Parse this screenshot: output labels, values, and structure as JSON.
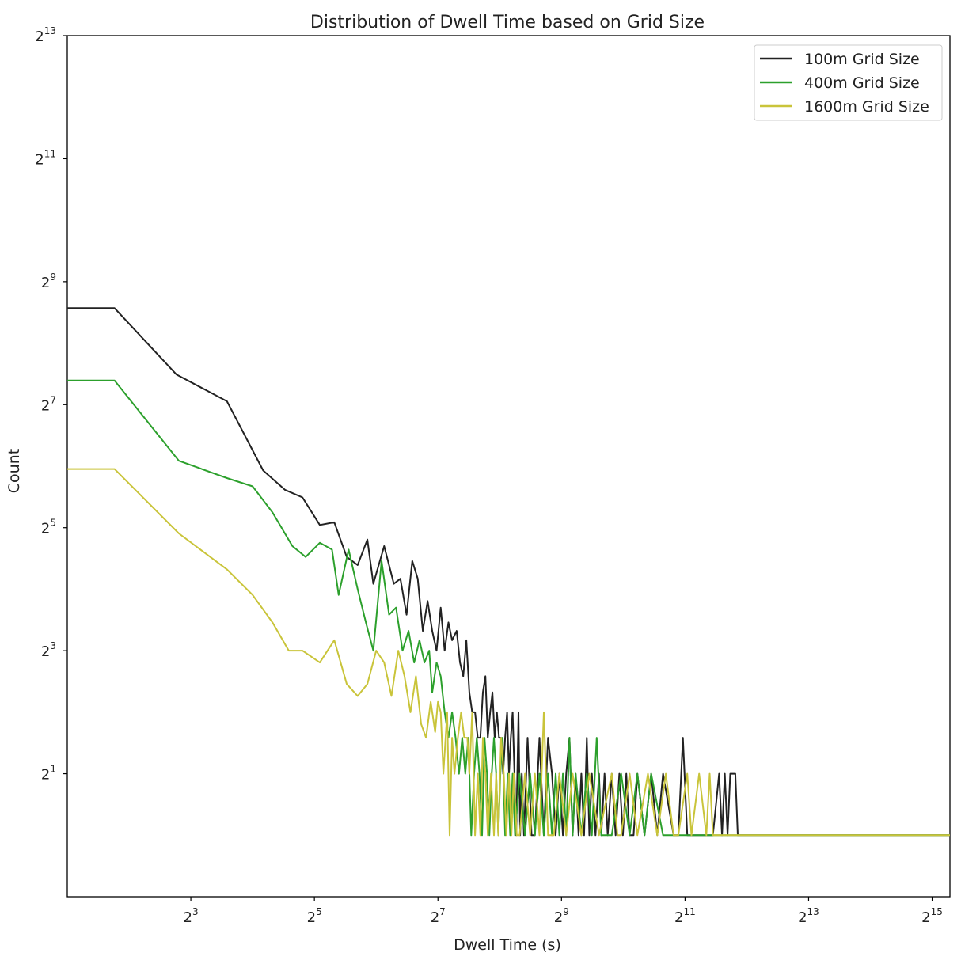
{
  "chart_data": {
    "type": "line",
    "title": "Distribution of Dwell Time based on Grid Size",
    "xlabel": "Dwell Time (s)",
    "ylabel": "Count",
    "x_scale": "log2",
    "y_scale": "log2",
    "xlim": [
      2,
      40000
    ],
    "ylim": [
      0.5,
      8192
    ],
    "x_ticks": [
      {
        "base": "2",
        "exp": "3",
        "value": 8
      },
      {
        "base": "2",
        "exp": "5",
        "value": 32
      },
      {
        "base": "2",
        "exp": "7",
        "value": 128
      },
      {
        "base": "2",
        "exp": "9",
        "value": 512
      },
      {
        "base": "2",
        "exp": "11",
        "value": 2048
      },
      {
        "base": "2",
        "exp": "13",
        "value": 8192
      },
      {
        "base": "2",
        "exp": "15",
        "value": 32768
      }
    ],
    "y_ticks": [
      {
        "base": "2",
        "exp": "1",
        "value": 2
      },
      {
        "base": "2",
        "exp": "3",
        "value": 8
      },
      {
        "base": "2",
        "exp": "5",
        "value": 32
      },
      {
        "base": "2",
        "exp": "7",
        "value": 128
      },
      {
        "base": "2",
        "exp": "9",
        "value": 512
      },
      {
        "base": "2",
        "exp": "11",
        "value": 2048
      },
      {
        "base": "2",
        "exp": "13",
        "value": 8192
      }
    ],
    "grid": false,
    "legend_position": "top-right",
    "series": [
      {
        "name": "100m Grid Size",
        "color": "#222222",
        "points": [
          [
            2,
            380
          ],
          [
            3.4,
            380
          ],
          [
            6.8,
            180
          ],
          [
            12,
            133
          ],
          [
            18,
            61
          ],
          [
            23,
            49
          ],
          [
            28,
            45
          ],
          [
            34,
            33
          ],
          [
            40,
            34
          ],
          [
            46,
            23
          ],
          [
            52,
            21
          ],
          [
            58,
            28
          ],
          [
            62,
            17
          ],
          [
            70,
            26
          ],
          [
            78,
            17
          ],
          [
            84,
            18
          ],
          [
            90,
            12
          ],
          [
            96,
            22
          ],
          [
            102,
            18
          ],
          [
            108,
            10
          ],
          [
            114,
            14
          ],
          [
            120,
            10
          ],
          [
            126,
            8
          ],
          [
            132,
            13
          ],
          [
            138,
            8
          ],
          [
            144,
            11
          ],
          [
            150,
            9
          ],
          [
            158,
            10
          ],
          [
            164,
            7
          ],
          [
            170,
            6
          ],
          [
            176,
            9
          ],
          [
            182,
            5
          ],
          [
            188,
            4
          ],
          [
            194,
            4
          ],
          [
            200,
            3
          ],
          [
            206,
            3
          ],
          [
            212,
            5
          ],
          [
            218,
            6
          ],
          [
            224,
            3
          ],
          [
            230,
            4
          ],
          [
            236,
            5
          ],
          [
            242,
            3
          ],
          [
            248,
            4
          ],
          [
            254,
            3
          ],
          [
            260,
            3
          ],
          [
            266,
            2
          ],
          [
            272,
            3
          ],
          [
            278,
            4
          ],
          [
            284,
            2
          ],
          [
            290,
            3
          ],
          [
            296,
            4
          ],
          [
            302,
            2
          ],
          [
            308,
            1
          ],
          [
            316,
            4
          ],
          [
            322,
            1
          ],
          [
            328,
            2
          ],
          [
            336,
            1
          ],
          [
            350,
            3
          ],
          [
            366,
            1
          ],
          [
            380,
            1
          ],
          [
            400,
            3
          ],
          [
            420,
            1
          ],
          [
            440,
            3
          ],
          [
            460,
            2
          ],
          [
            480,
            1
          ],
          [
            500,
            2
          ],
          [
            520,
            1
          ],
          [
            540,
            2
          ],
          [
            560,
            3
          ],
          [
            580,
            1
          ],
          [
            600,
            2
          ],
          [
            620,
            1
          ],
          [
            640,
            2
          ],
          [
            660,
            1
          ],
          [
            680,
            3
          ],
          [
            700,
            1
          ],
          [
            720,
            2
          ],
          [
            750,
            1
          ],
          [
            780,
            2
          ],
          [
            800,
            1
          ],
          [
            830,
            2
          ],
          [
            860,
            1
          ],
          [
            900,
            2
          ],
          [
            940,
            1
          ],
          [
            980,
            2
          ],
          [
            1020,
            1
          ],
          [
            1060,
            2
          ],
          [
            1100,
            1
          ],
          [
            1150,
            1
          ],
          [
            1200,
            2
          ],
          [
            1300,
            1
          ],
          [
            1400,
            2
          ],
          [
            1500,
            1
          ],
          [
            1600,
            2
          ],
          [
            1800,
            1
          ],
          [
            1900,
            1
          ],
          [
            2000,
            3
          ],
          [
            2100,
            1
          ],
          [
            2300,
            1
          ],
          [
            2500,
            1
          ],
          [
            2800,
            1
          ],
          [
            3000,
            2
          ],
          [
            3100,
            1
          ],
          [
            3200,
            2
          ],
          [
            3300,
            1
          ],
          [
            3400,
            2
          ],
          [
            3600,
            2
          ],
          [
            3700,
            1
          ],
          [
            40000,
            1
          ]
        ]
      },
      {
        "name": "400m Grid Size",
        "color": "#2ca02c",
        "points": [
          [
            2,
            168
          ],
          [
            3.4,
            168
          ],
          [
            7,
            68
          ],
          [
            12,
            56
          ],
          [
            16,
            51
          ],
          [
            20,
            38
          ],
          [
            25,
            26
          ],
          [
            29,
            23
          ],
          [
            34,
            27
          ],
          [
            39,
            25
          ],
          [
            42,
            15
          ],
          [
            47,
            25
          ],
          [
            52,
            16
          ],
          [
            57,
            11
          ],
          [
            62,
            8
          ],
          [
            68,
            22
          ],
          [
            74,
            12
          ],
          [
            80,
            13
          ],
          [
            86,
            8
          ],
          [
            92,
            10
          ],
          [
            98,
            7
          ],
          [
            104,
            9
          ],
          [
            110,
            7
          ],
          [
            116,
            8
          ],
          [
            120,
            5
          ],
          [
            126,
            7
          ],
          [
            132,
            6
          ],
          [
            138,
            4
          ],
          [
            144,
            3
          ],
          [
            150,
            4
          ],
          [
            156,
            3
          ],
          [
            162,
            2
          ],
          [
            168,
            3
          ],
          [
            174,
            2
          ],
          [
            180,
            3
          ],
          [
            186,
            1
          ],
          [
            192,
            2
          ],
          [
            198,
            3
          ],
          [
            204,
            2
          ],
          [
            210,
            1
          ],
          [
            216,
            3
          ],
          [
            222,
            2
          ],
          [
            228,
            1
          ],
          [
            234,
            2
          ],
          [
            240,
            3
          ],
          [
            246,
            2
          ],
          [
            252,
            1
          ],
          [
            258,
            2
          ],
          [
            264,
            3
          ],
          [
            272,
            1
          ],
          [
            280,
            2
          ],
          [
            288,
            1
          ],
          [
            296,
            2
          ],
          [
            304,
            1
          ],
          [
            320,
            2
          ],
          [
            340,
            1
          ],
          [
            360,
            2
          ],
          [
            380,
            1
          ],
          [
            400,
            2
          ],
          [
            420,
            1
          ],
          [
            440,
            2
          ],
          [
            460,
            1
          ],
          [
            480,
            2
          ],
          [
            500,
            1
          ],
          [
            520,
            2
          ],
          [
            540,
            1
          ],
          [
            560,
            3
          ],
          [
            580,
            1
          ],
          [
            600,
            2
          ],
          [
            640,
            1
          ],
          [
            680,
            2
          ],
          [
            720,
            1
          ],
          [
            760,
            3
          ],
          [
            800,
            1
          ],
          [
            900,
            1
          ],
          [
            1000,
            2
          ],
          [
            1100,
            1
          ],
          [
            1200,
            2
          ],
          [
            1300,
            1
          ],
          [
            1400,
            2
          ],
          [
            1600,
            1
          ],
          [
            40000,
            1
          ]
        ]
      },
      {
        "name": "1600m Grid Size",
        "color": "#c9c43a",
        "points": [
          [
            2,
            62
          ],
          [
            3.4,
            62
          ],
          [
            7,
            30
          ],
          [
            12,
            20
          ],
          [
            16,
            15
          ],
          [
            20,
            11
          ],
          [
            24,
            8
          ],
          [
            28,
            8
          ],
          [
            34,
            7
          ],
          [
            40,
            9
          ],
          [
            46,
            5.5
          ],
          [
            52,
            4.8
          ],
          [
            58,
            5.5
          ],
          [
            64,
            8
          ],
          [
            70,
            7
          ],
          [
            76,
            4.8
          ],
          [
            82,
            8
          ],
          [
            88,
            6
          ],
          [
            94,
            4
          ],
          [
            100,
            6
          ],
          [
            106,
            3.5
          ],
          [
            112,
            3
          ],
          [
            118,
            4.5
          ],
          [
            124,
            3.2
          ],
          [
            128,
            4.5
          ],
          [
            132,
            4
          ],
          [
            136,
            2
          ],
          [
            142,
            4
          ],
          [
            146,
            1
          ],
          [
            150,
            3
          ],
          [
            154,
            2
          ],
          [
            160,
            3
          ],
          [
            166,
            4
          ],
          [
            172,
            3
          ],
          [
            178,
            3
          ],
          [
            182,
            2
          ],
          [
            188,
            4
          ],
          [
            194,
            1
          ],
          [
            200,
            2
          ],
          [
            206,
            1
          ],
          [
            212,
            3
          ],
          [
            218,
            2
          ],
          [
            224,
            1
          ],
          [
            232,
            2
          ],
          [
            240,
            1
          ],
          [
            246,
            2
          ],
          [
            252,
            1
          ],
          [
            260,
            3
          ],
          [
            268,
            2
          ],
          [
            276,
            1
          ],
          [
            284,
            2
          ],
          [
            292,
            1
          ],
          [
            300,
            2
          ],
          [
            310,
            1
          ],
          [
            320,
            1
          ],
          [
            340,
            2
          ],
          [
            360,
            1
          ],
          [
            380,
            2
          ],
          [
            400,
            1
          ],
          [
            420,
            4
          ],
          [
            440,
            1
          ],
          [
            470,
            1
          ],
          [
            500,
            2
          ],
          [
            540,
            1
          ],
          [
            580,
            2
          ],
          [
            640,
            1
          ],
          [
            700,
            2
          ],
          [
            780,
            1
          ],
          [
            900,
            2
          ],
          [
            960,
            1
          ],
          [
            1000,
            1
          ],
          [
            1100,
            2
          ],
          [
            1200,
            1
          ],
          [
            1350,
            2
          ],
          [
            1500,
            1
          ],
          [
            1650,
            2
          ],
          [
            1800,
            1
          ],
          [
            1900,
            1
          ],
          [
            2100,
            2
          ],
          [
            2200,
            1
          ],
          [
            2400,
            2
          ],
          [
            2600,
            1
          ],
          [
            2700,
            2
          ],
          [
            2800,
            1
          ],
          [
            40000,
            1
          ]
        ]
      }
    ]
  }
}
